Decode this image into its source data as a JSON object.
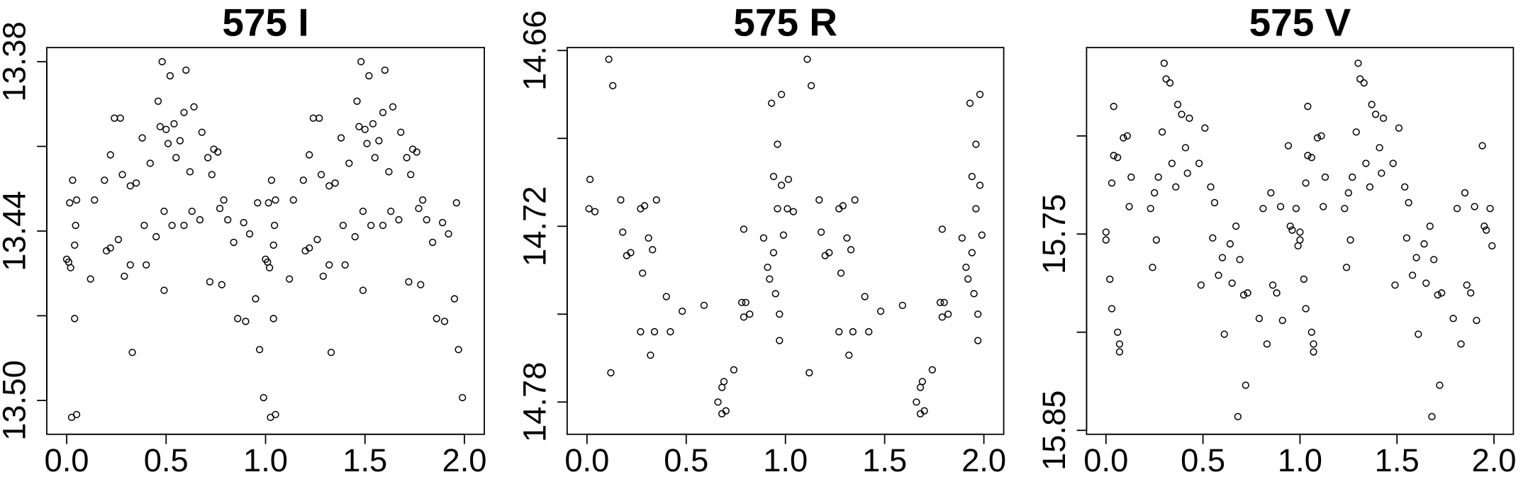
{
  "chart_data": [
    {
      "type": "scatter",
      "title": "575 I",
      "x": [
        0.0,
        0.01,
        0.02,
        0.03,
        0.015,
        0.05,
        0.04,
        0.045,
        0.04,
        0.025,
        0.05,
        0.12,
        0.14,
        0.19,
        0.2,
        0.22,
        0.22,
        0.24,
        0.27,
        0.26,
        0.28,
        0.29,
        0.32,
        0.32,
        0.33,
        0.35,
        0.38,
        0.39,
        0.4,
        0.42,
        0.45,
        0.46,
        0.47,
        0.48,
        0.49,
        0.49,
        0.5,
        0.51,
        0.52,
        0.53,
        0.54,
        0.55,
        0.57,
        0.59,
        0.59,
        0.6,
        0.62,
        0.63,
        0.64,
        0.67,
        0.68,
        0.71,
        0.72,
        0.73,
        0.74,
        0.76,
        0.77,
        0.78,
        0.79,
        0.81,
        0.84,
        0.86,
        0.89,
        0.9,
        0.92,
        0.95,
        0.96,
        0.97,
        0.99,
        1.0,
        1.01,
        1.02,
        1.03,
        1.015,
        1.05,
        1.04,
        1.045,
        1.04,
        1.025,
        1.05,
        1.12,
        1.14,
        1.19,
        1.2,
        1.22,
        1.22,
        1.24,
        1.27,
        1.26,
        1.28,
        1.29,
        1.32,
        1.32,
        1.33,
        1.35,
        1.38,
        1.39,
        1.4,
        1.42,
        1.45,
        1.46,
        1.47,
        1.48,
        1.49,
        1.49,
        1.5,
        1.51,
        1.52,
        1.53,
        1.54,
        1.55,
        1.57,
        1.59,
        1.59,
        1.6,
        1.62,
        1.63,
        1.64,
        1.67,
        1.68,
        1.71,
        1.72,
        1.73,
        1.74,
        1.76,
        1.77,
        1.78,
        1.79,
        1.81,
        1.84,
        1.86,
        1.89,
        1.9,
        1.92,
        1.95,
        1.96,
        1.97,
        1.99
      ],
      "values": [
        13.45,
        13.451,
        13.453,
        13.422,
        13.43,
        13.429,
        13.445,
        13.438,
        13.471,
        13.506,
        13.505,
        13.457,
        13.429,
        13.422,
        13.447,
        13.446,
        13.413,
        13.4,
        13.4,
        13.443,
        13.42,
        13.456,
        13.424,
        13.452,
        13.483,
        13.423,
        13.407,
        13.438,
        13.452,
        13.416,
        13.442,
        13.394,
        13.403,
        13.38,
        13.433,
        13.461,
        13.404,
        13.409,
        13.385,
        13.438,
        13.402,
        13.414,
        13.408,
        13.398,
        13.438,
        13.383,
        13.419,
        13.433,
        13.396,
        13.436,
        13.405,
        13.414,
        13.458,
        13.42,
        13.411,
        13.412,
        13.432,
        13.459,
        13.429,
        13.436,
        13.444,
        13.471,
        13.437,
        13.472,
        13.441,
        13.464,
        13.43,
        13.482,
        13.499,
        13.45,
        13.451,
        13.453,
        13.422,
        13.43,
        13.429,
        13.445,
        13.438,
        13.471,
        13.506,
        13.505,
        13.457,
        13.429,
        13.422,
        13.447,
        13.446,
        13.413,
        13.4,
        13.4,
        13.443,
        13.42,
        13.456,
        13.424,
        13.452,
        13.483,
        13.423,
        13.407,
        13.438,
        13.452,
        13.416,
        13.442,
        13.394,
        13.403,
        13.38,
        13.433,
        13.461,
        13.404,
        13.409,
        13.385,
        13.438,
        13.402,
        13.414,
        13.408,
        13.398,
        13.438,
        13.383,
        13.419,
        13.433,
        13.396,
        13.436,
        13.405,
        13.414,
        13.458,
        13.42,
        13.411,
        13.412,
        13.432,
        13.459,
        13.429,
        13.436,
        13.444,
        13.471,
        13.437,
        13.472,
        13.441,
        13.464,
        13.43,
        13.482,
        13.499
      ],
      "xlim": [
        -0.1,
        2.1
      ],
      "ylim": [
        13.512,
        13.375
      ],
      "xticks": [
        {
          "value": 0,
          "label": "0.0"
        },
        0.5,
        {
          "value": 1,
          "label": "1.0"
        },
        1.5,
        {
          "value": 2,
          "label": "2.0"
        }
      ],
      "yticks": [
        13.38,
        13.44,
        {
          "value": 13.5,
          "label": "13.50"
        }
      ],
      "yminorticks": [
        13.41,
        13.47
      ]
    },
    {
      "type": "scatter",
      "title": "575 R",
      "x": [
        0.01,
        0.015,
        0.04,
        0.11,
        0.13,
        0.12,
        0.17,
        0.18,
        0.2,
        0.22,
        0.27,
        0.27,
        0.28,
        0.29,
        0.31,
        0.32,
        0.33,
        0.34,
        0.35,
        0.4,
        0.42,
        0.48,
        0.59,
        0.66,
        0.68,
        0.68,
        0.69,
        0.7,
        0.74,
        0.79,
        0.78,
        0.79,
        0.8,
        0.82,
        0.89,
        0.91,
        0.92,
        0.93,
        0.94,
        0.94,
        0.95,
        0.96,
        0.96,
        0.97,
        0.97,
        0.98,
        0.98,
        0.99,
        1.01,
        1.015,
        1.04,
        1.11,
        1.13,
        1.12,
        1.17,
        1.18,
        1.2,
        1.22,
        1.27,
        1.27,
        1.28,
        1.29,
        1.31,
        1.32,
        1.33,
        1.34,
        1.35,
        1.4,
        1.42,
        1.48,
        1.59,
        1.66,
        1.68,
        1.68,
        1.69,
        1.7,
        1.74,
        1.79,
        1.78,
        1.79,
        1.8,
        1.82,
        1.89,
        1.91,
        1.92,
        1.93,
        1.94,
        1.94,
        1.95,
        1.96,
        1.96,
        1.97,
        1.97,
        1.98,
        1.98,
        1.99
      ],
      "values": [
        14.714,
        14.704,
        14.715,
        14.663,
        14.672,
        14.77,
        14.711,
        14.722,
        14.73,
        14.729,
        14.756,
        14.714,
        14.736,
        14.713,
        14.724,
        14.764,
        14.728,
        14.756,
        14.711,
        14.744,
        14.756,
        14.749,
        14.747,
        14.78,
        14.784,
        14.775,
        14.773,
        14.783,
        14.769,
        14.721,
        14.746,
        14.751,
        14.746,
        14.75,
        14.724,
        14.734,
        14.738,
        14.678,
        14.729,
        14.703,
        14.743,
        14.692,
        14.714,
        14.75,
        14.759,
        14.675,
        14.706,
        14.723,
        14.714,
        14.704,
        14.715,
        14.663,
        14.672,
        14.77,
        14.711,
        14.722,
        14.73,
        14.729,
        14.756,
        14.714,
        14.736,
        14.713,
        14.724,
        14.764,
        14.728,
        14.756,
        14.711,
        14.744,
        14.756,
        14.749,
        14.747,
        14.78,
        14.784,
        14.775,
        14.773,
        14.783,
        14.769,
        14.721,
        14.746,
        14.751,
        14.746,
        14.75,
        14.724,
        14.734,
        14.738,
        14.678,
        14.729,
        14.703,
        14.743,
        14.692,
        14.714,
        14.75,
        14.759,
        14.675,
        14.706,
        14.723
      ],
      "xlim": [
        -0.1,
        2.1
      ],
      "ylim": [
        14.791,
        14.659
      ],
      "xticks": [
        {
          "value": 0,
          "label": "0.0"
        },
        0.5,
        {
          "value": 1,
          "label": "1.0"
        },
        1.5,
        {
          "value": 2,
          "label": "2.0"
        }
      ],
      "yticks": [
        14.66,
        14.72,
        14.78
      ],
      "yminorticks": [
        14.69,
        14.75
      ]
    },
    {
      "type": "scatter",
      "title": "575 V",
      "x": [
        0.0,
        0.0,
        0.02,
        0.03,
        0.03,
        0.04,
        0.04,
        0.06,
        0.06,
        0.07,
        0.07,
        0.09,
        0.11,
        0.12,
        0.13,
        0.23,
        0.24,
        0.25,
        0.26,
        0.27,
        0.29,
        0.3,
        0.31,
        0.33,
        0.34,
        0.36,
        0.37,
        0.39,
        0.41,
        0.42,
        0.43,
        0.48,
        0.49,
        0.51,
        0.54,
        0.55,
        0.56,
        0.58,
        0.6,
        0.61,
        0.64,
        0.65,
        0.67,
        0.68,
        0.69,
        0.71,
        0.72,
        0.73,
        0.79,
        0.81,
        0.83,
        0.85,
        0.86,
        0.88,
        0.9,
        0.91,
        0.94,
        0.95,
        0.96,
        0.98,
        0.99,
        1.0,
        1.0,
        1.02,
        1.03,
        1.03,
        1.04,
        1.04,
        1.06,
        1.06,
        1.07,
        1.07,
        1.09,
        1.11,
        1.12,
        1.13,
        1.23,
        1.24,
        1.25,
        1.26,
        1.27,
        1.29,
        1.3,
        1.31,
        1.33,
        1.34,
        1.36,
        1.37,
        1.39,
        1.41,
        1.42,
        1.43,
        1.48,
        1.49,
        1.51,
        1.54,
        1.55,
        1.56,
        1.58,
        1.6,
        1.61,
        1.64,
        1.65,
        1.67,
        1.68,
        1.69,
        1.71,
        1.72,
        1.73,
        1.79,
        1.81,
        1.83,
        1.85,
        1.86,
        1.88,
        1.9,
        1.91,
        1.94,
        1.95,
        1.96,
        1.98,
        1.99
      ],
      "values": [
        15.749,
        15.753,
        15.773,
        15.724,
        15.788,
        15.685,
        15.71,
        15.711,
        15.8,
        15.806,
        15.81,
        15.701,
        15.7,
        15.736,
        15.721,
        15.737,
        15.767,
        15.729,
        15.753,
        15.721,
        15.698,
        15.663,
        15.671,
        15.673,
        15.714,
        15.726,
        15.684,
        15.689,
        15.706,
        15.719,
        15.691,
        15.714,
        15.776,
        15.696,
        15.726,
        15.752,
        15.734,
        15.771,
        15.762,
        15.801,
        15.755,
        15.775,
        15.746,
        15.843,
        15.763,
        15.781,
        15.827,
        15.78,
        15.793,
        15.737,
        15.806,
        15.729,
        15.776,
        15.78,
        15.736,
        15.794,
        15.705,
        15.746,
        15.748,
        15.737,
        15.756,
        15.749,
        15.753,
        15.773,
        15.724,
        15.788,
        15.685,
        15.71,
        15.711,
        15.8,
        15.806,
        15.81,
        15.701,
        15.7,
        15.736,
        15.721,
        15.737,
        15.767,
        15.729,
        15.753,
        15.721,
        15.698,
        15.663,
        15.671,
        15.673,
        15.714,
        15.726,
        15.684,
        15.689,
        15.706,
        15.719,
        15.691,
        15.714,
        15.776,
        15.696,
        15.726,
        15.752,
        15.734,
        15.771,
        15.762,
        15.801,
        15.755,
        15.775,
        15.746,
        15.843,
        15.763,
        15.781,
        15.827,
        15.78,
        15.793,
        15.737,
        15.806,
        15.729,
        15.776,
        15.78,
        15.736,
        15.794,
        15.705,
        15.746,
        15.748,
        15.737,
        15.756
      ],
      "xlim": [
        -0.1,
        2.1
      ],
      "ylim": [
        15.852,
        15.655
      ],
      "xticks": [
        {
          "value": 0,
          "label": "0.0"
        },
        0.5,
        {
          "value": 1,
          "label": "1.0"
        },
        1.5,
        {
          "value": 2,
          "label": "2.0"
        }
      ],
      "yticks": [
        15.75,
        15.85
      ],
      "yminorticks": [
        15.7,
        15.8
      ]
    }
  ]
}
